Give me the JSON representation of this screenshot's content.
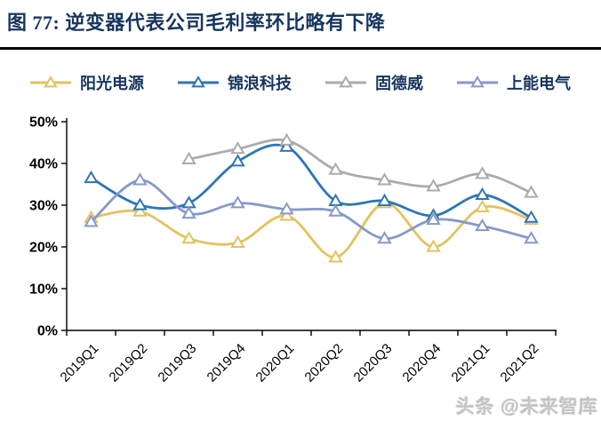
{
  "header": {
    "title": "图 77:  逆变器代表公司毛利率环比略有下降"
  },
  "watermark": {
    "text": "头条 @未来智库"
  },
  "chart_data": {
    "type": "line",
    "title": "逆变器代表公司毛利率环比略有下降",
    "categories": [
      "2019Q1",
      "2019Q2",
      "2019Q3",
      "2019Q4",
      "2020Q1",
      "2020Q2",
      "2020Q3",
      "2020Q4",
      "2021Q1",
      "2021Q2"
    ],
    "series": [
      {
        "name": "阳光电源",
        "color": "#e3c25f",
        "values": [
          27,
          28.5,
          22,
          21,
          27.5,
          17.5,
          30.5,
          20,
          29.5,
          26.5
        ]
      },
      {
        "name": "锦浪科技",
        "color": "#2e75b6",
        "values": [
          36.5,
          30,
          30.5,
          40.5,
          44,
          31,
          31,
          27.5,
          32.5,
          27
        ]
      },
      {
        "name": "固德威",
        "color": "#ababab",
        "values": [
          null,
          null,
          41,
          43.5,
          45.5,
          38.5,
          36,
          34.5,
          37.5,
          33
        ]
      },
      {
        "name": "上能电气",
        "color": "#8599c9",
        "values": [
          26,
          36,
          28,
          30.5,
          29,
          28.5,
          22,
          26.5,
          25,
          22
        ]
      }
    ],
    "xlabel": "",
    "ylabel": "",
    "y_tick_labels": [
      "50%",
      "40%",
      "30%",
      "20%",
      "10%",
      "0%"
    ],
    "ylim": [
      0,
      50
    ],
    "y_step": 10,
    "grid": false,
    "marker": "triangle",
    "line_style": "smooth",
    "legend_position": "top",
    "axis_color": "#000000",
    "text_color": "#000000"
  }
}
